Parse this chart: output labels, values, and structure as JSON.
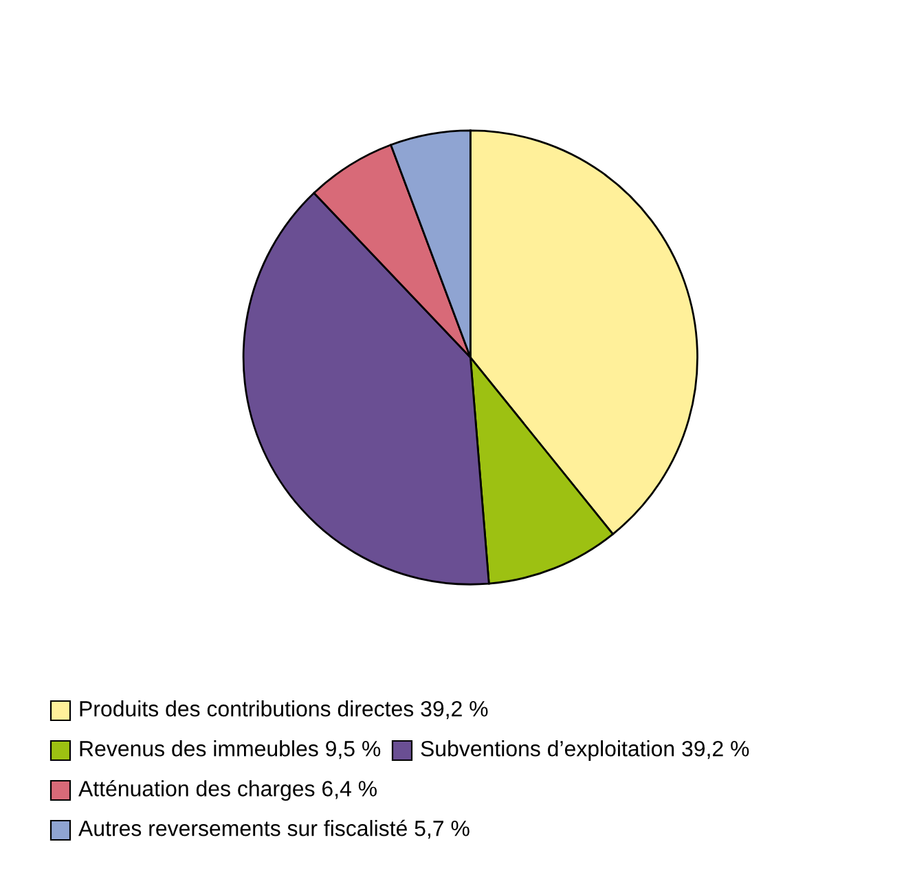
{
  "chart_data": {
    "type": "pie",
    "categories": [
      "Produits des contributions directes 39,2 %",
      "Revenus des immeubles 9,5 %",
      "Subventions d’exploitation 39,2 %",
      "Atténuation des charges 6,4 %",
      "Autres reversements sur fiscalisté 5,7 %"
    ],
    "values": [
      39.2,
      9.5,
      39.2,
      6.4,
      5.7
    ],
    "colors": [
      "#fff09a",
      "#9dc112",
      "#6a4f93",
      "#d86a78",
      "#8fa4d2"
    ],
    "legend": "bottom"
  }
}
